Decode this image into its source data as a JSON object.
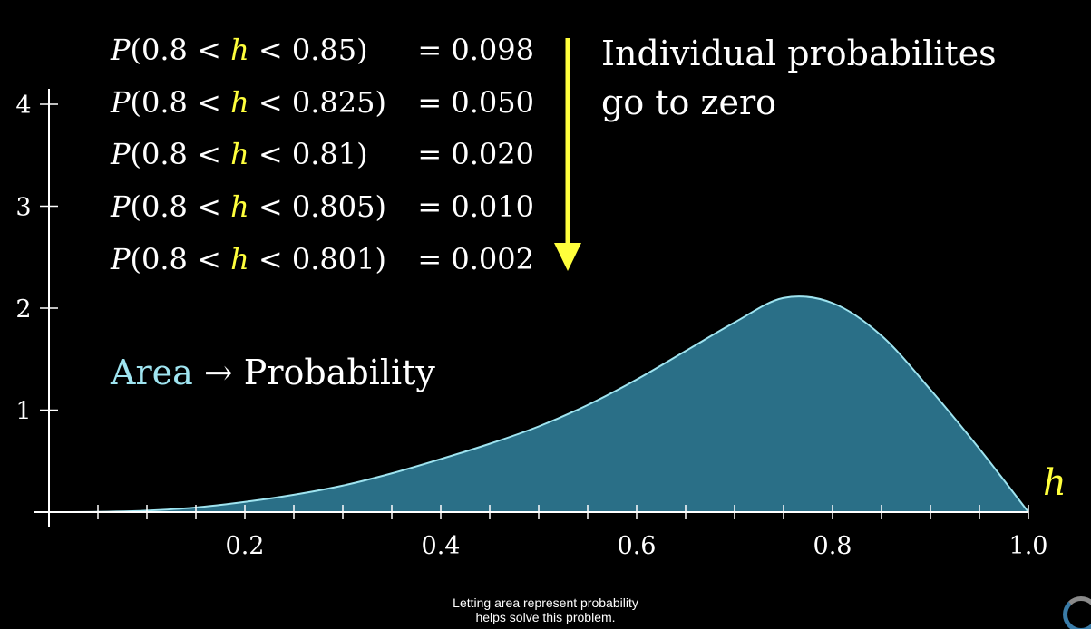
{
  "chart_data": {
    "type": "area",
    "x": [
      0,
      0.05,
      0.1,
      0.15,
      0.2,
      0.25,
      0.3,
      0.35,
      0.4,
      0.45,
      0.5,
      0.55,
      0.6,
      0.65,
      0.7,
      0.75,
      0.8,
      0.85,
      0.9,
      0.95,
      1.0
    ],
    "y": [
      0,
      0.002,
      0.015,
      0.045,
      0.1,
      0.17,
      0.26,
      0.38,
      0.52,
      0.67,
      0.84,
      1.05,
      1.3,
      1.58,
      1.86,
      2.1,
      2.05,
      1.73,
      1.2,
      0.62,
      0
    ],
    "xlabel": "h",
    "ylabel": "",
    "xlim": [
      0,
      1.0
    ],
    "ylim": [
      0,
      4
    ],
    "x_ticks": [
      "0.2",
      "0.4",
      "0.6",
      "0.8",
      "1.0"
    ],
    "y_ticks": [
      "1",
      "2",
      "3",
      "4"
    ],
    "grid": false,
    "fill_color": "#2a6f87",
    "curve_color": "#9fe4f0",
    "highlight_color": "#ffff3c",
    "probabilities": [
      {
        "prefix": "P(0.8 < ",
        "var": "h",
        "suffix": " < 0.85)",
        "value": "= 0.098"
      },
      {
        "prefix": "P(0.8 < ",
        "var": "h",
        "suffix": " < 0.825)",
        "value": "= 0.050"
      },
      {
        "prefix": "P(0.8 < ",
        "var": "h",
        "suffix": " < 0.81)",
        "value": "= 0.020"
      },
      {
        "prefix": "P(0.8 < ",
        "var": "h",
        "suffix": " < 0.805)",
        "value": "= 0.010"
      },
      {
        "prefix": "P(0.8 < ",
        "var": "h",
        "suffix": " < 0.801)",
        "value": "= 0.002"
      }
    ],
    "annotation_lines": [
      "Individual probabilites",
      "go to zero"
    ],
    "area_label": {
      "area": "Area",
      "arrow": "→",
      "probability": "Probability"
    },
    "area_label_color": "#9fe4f0"
  },
  "caption": {
    "line1": "Letting area represent probability",
    "line2": "helps solve this problem."
  }
}
